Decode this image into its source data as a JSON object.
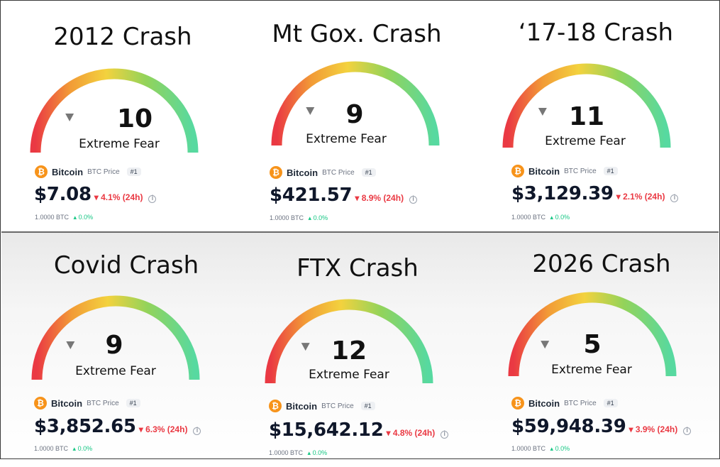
{
  "colors": {
    "gauge_red": "#ea3943",
    "gauge_orange": "#f29b36",
    "gauge_yellow": "#f3d23e",
    "gauge_green": "#93d35a",
    "gauge_teal": "#57d9a0",
    "negative": "#ea3943",
    "positive": "#16c784",
    "btc_orange": "#f7931a"
  },
  "cards": [
    {
      "title": "2012 Crash",
      "score": "10",
      "mood": "Extreme Fear",
      "asset_name": "Bitcoin",
      "asset_sub": "BTC Price",
      "rank": "#1",
      "price": "$7.08",
      "change": "4.1% (24h)",
      "unit": "1.0000 BTC",
      "unit_change": "0.0%",
      "coin_glyph": "₿",
      "info_glyph": "i",
      "down_arrow": "▾",
      "up_arrow": "▴"
    },
    {
      "title": "Mt Gox. Crash",
      "score": "9",
      "mood": "Extreme Fear",
      "asset_name": "Bitcoin",
      "asset_sub": "BTC Price",
      "rank": "#1",
      "price": "$421.57",
      "change": "8.9% (24h)",
      "unit": "1.0000 BTC",
      "unit_change": "0.0%",
      "coin_glyph": "₿",
      "info_glyph": "i",
      "down_arrow": "▾",
      "up_arrow": "▴"
    },
    {
      "title": "‘17-18 Crash",
      "score": "11",
      "mood": "Extreme Fear",
      "asset_name": "Bitcoin",
      "asset_sub": "BTC Price",
      "rank": "#1",
      "price": "$3,129.39",
      "change": "2.1% (24h)",
      "unit": "1.0000 BTC",
      "unit_change": "0.0%",
      "coin_glyph": "₿",
      "info_glyph": "i",
      "down_arrow": "▾",
      "up_arrow": "▴"
    },
    {
      "title": "Covid Crash",
      "score": "9",
      "mood": "Extreme Fear",
      "asset_name": "Bitcoin",
      "asset_sub": "BTC Price",
      "rank": "#1",
      "price": "$3,852.65",
      "change": "6.3% (24h)",
      "unit": "1.0000 BTC",
      "unit_change": "0.0%",
      "coin_glyph": "₿",
      "info_glyph": "i",
      "down_arrow": "▾",
      "up_arrow": "▴"
    },
    {
      "title": "FTX Crash",
      "score": "12",
      "mood": "Extreme Fear",
      "asset_name": "Bitcoin",
      "asset_sub": "BTC Price",
      "rank": "#1",
      "price": "$15,642.12",
      "change": "4.8% (24h)",
      "unit": "1.0000 BTC",
      "unit_change": "0.0%",
      "coin_glyph": "₿",
      "info_glyph": "i",
      "down_arrow": "▾",
      "up_arrow": "▴"
    },
    {
      "title": "2026 Crash",
      "score": "5",
      "mood": "Extreme Fear",
      "asset_name": "Bitcoin",
      "asset_sub": "BTC Price",
      "rank": "#1",
      "price": "$59,948.39",
      "change": "3.9% (24h)",
      "unit": "1.0000 BTC",
      "unit_change": "0.0%",
      "coin_glyph": "₿",
      "info_glyph": "i",
      "down_arrow": "▾",
      "up_arrow": "▴"
    }
  ]
}
